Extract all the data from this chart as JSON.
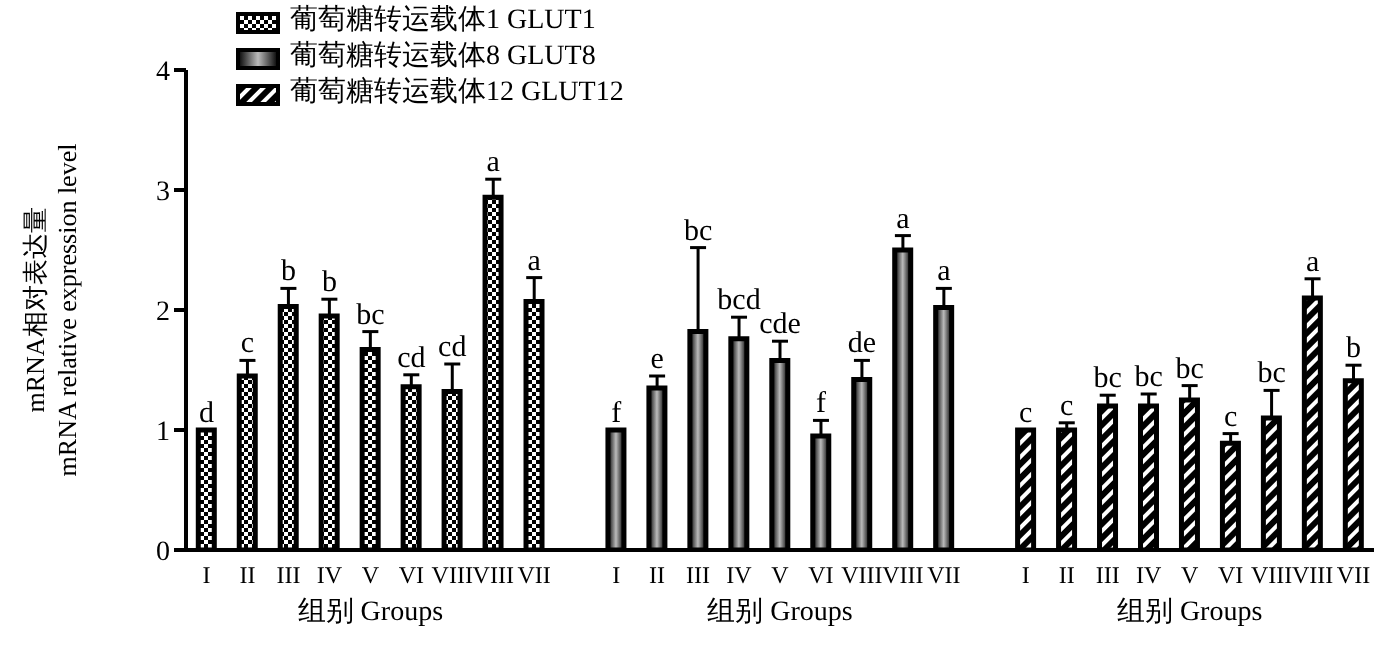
{
  "chart_data": {
    "type": "bar",
    "ylabel": "mRNA相对表达量\nmRNA relative expression level",
    "xlabel": "组别 Groups",
    "annotations": [
      "组别 Groups",
      "组别 Groups"
    ],
    "categories": [
      "I",
      "II",
      "III",
      "IV",
      "V",
      "VI",
      "VIII",
      "VIII",
      "VII",
      null,
      "I",
      "II",
      "III",
      "IV",
      "V",
      "VI",
      "VIII",
      "VIII",
      "VII",
      null,
      "I",
      "II",
      "III",
      "IV",
      "V",
      "VI",
      "VIII",
      "VIII",
      "VII"
    ],
    "series": [
      {
        "name": "葡萄糖转运载体1 GLUT1",
        "color": "#000000",
        "values": [
          1.0,
          1.45,
          2.03,
          1.95,
          1.67,
          1.36,
          1.32,
          2.94,
          2.07,
          null,
          null,
          null,
          null,
          null,
          null,
          null,
          null,
          null,
          null,
          null,
          null,
          null,
          null,
          null,
          null,
          null,
          null,
          null,
          null
        ],
        "errors": [
          null,
          0.13,
          0.15,
          0.14,
          0.15,
          0.1,
          0.23,
          0.15,
          0.2,
          null,
          null,
          null,
          null,
          null,
          null,
          null,
          null,
          null,
          null,
          null,
          null,
          null,
          null,
          null,
          null,
          null,
          null,
          null,
          null
        ],
        "value_labels": [
          "d",
          "c",
          "b",
          "b",
          "bc",
          "cd",
          "cd",
          "a",
          "a",
          null,
          null,
          null,
          null,
          null,
          null,
          null,
          null,
          null,
          null,
          null,
          null,
          null,
          null,
          null,
          null,
          null,
          null,
          null,
          null
        ]
      },
      {
        "name": "葡萄糖转运载体8 GLUT8",
        "color": "#000000",
        "values": [
          null,
          null,
          null,
          null,
          null,
          null,
          null,
          null,
          null,
          null,
          1.0,
          1.35,
          1.82,
          1.76,
          1.58,
          0.95,
          1.42,
          2.5,
          2.02,
          null,
          null,
          null,
          null,
          null,
          null,
          null,
          null,
          null,
          null
        ],
        "errors": [
          null,
          null,
          null,
          null,
          null,
          null,
          null,
          null,
          null,
          null,
          null,
          0.1,
          0.7,
          0.18,
          0.16,
          0.13,
          0.16,
          0.12,
          0.16,
          null,
          null,
          null,
          null,
          null,
          null,
          null,
          null,
          null,
          null
        ],
        "value_labels": [
          null,
          null,
          null,
          null,
          null,
          null,
          null,
          null,
          null,
          null,
          "f",
          "e",
          "bc",
          "bcd",
          "cde",
          "f",
          "de",
          "a",
          "a",
          null,
          null,
          null,
          null,
          null,
          null,
          null,
          null,
          null,
          null
        ]
      },
      {
        "name": "葡萄糖转运载体12 GLUT12",
        "color": "#000000",
        "values": [
          null,
          null,
          null,
          null,
          null,
          null,
          null,
          null,
          null,
          null,
          null,
          null,
          null,
          null,
          null,
          null,
          null,
          null,
          null,
          null,
          1.0,
          1.0,
          1.2,
          1.2,
          1.25,
          0.89,
          1.1,
          2.1,
          1.41
        ],
        "errors": [
          null,
          null,
          null,
          null,
          null,
          null,
          null,
          null,
          null,
          null,
          null,
          null,
          null,
          null,
          null,
          null,
          null,
          null,
          null,
          null,
          null,
          0.06,
          0.09,
          0.1,
          0.12,
          0.08,
          0.23,
          0.16,
          0.13
        ],
        "value_labels": [
          null,
          null,
          null,
          null,
          null,
          null,
          null,
          null,
          null,
          null,
          null,
          null,
          null,
          null,
          null,
          null,
          null,
          null,
          null,
          null,
          "c",
          "c",
          "bc",
          "bc",
          "bc",
          "c",
          "bc",
          "a",
          "b"
        ]
      }
    ],
    "ylim": [
      0,
      4
    ],
    "yticks": [
      0,
      1,
      2,
      3,
      4
    ],
    "grid": false,
    "legend": "top left"
  }
}
